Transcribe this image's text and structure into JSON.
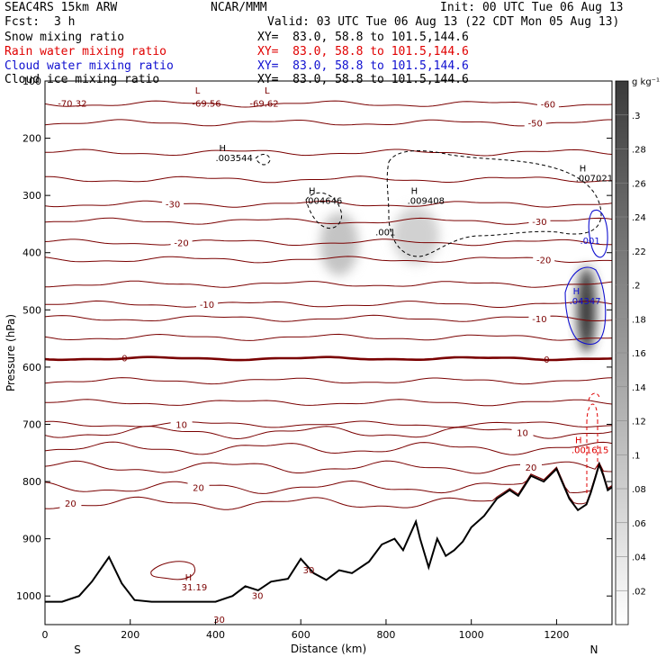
{
  "header": {
    "model": "SEAC4RS 15km ARW",
    "org": "NCAR/MMM",
    "init": "Init: 00 UTC Tue 06 Aug 13",
    "fcst_label": "Fcst:",
    "fcst_value": "3 h",
    "valid": "Valid: 03 UTC Tue 06 Aug 13 (22 CDT Mon 05 Aug 13)",
    "fields": [
      {
        "name": "Snow mixing ratio",
        "xy": "XY=  83.0, 58.8 to 101.5,144.6",
        "color": "#000000"
      },
      {
        "name": "Rain water mixing ratio",
        "xy": "XY=  83.0, 58.8 to 101.5,144.6",
        "color": "#e00000"
      },
      {
        "name": "Cloud water mixing ratio",
        "xy": "XY=  83.0, 58.8 to 101.5,144.6",
        "color": "#1010d0"
      },
      {
        "name": "Cloud ice mixing ratio",
        "xy": "XY=  83.0, 58.8 to 101.5,144.6",
        "color": "#000000"
      }
    ]
  },
  "chart_data": {
    "type": "contour cross-section",
    "xlabel": "Distance (km)",
    "ylabel": "Pressure (hPa)",
    "xlim": [
      0,
      1330
    ],
    "ylim": [
      1050,
      100
    ],
    "x_ticks": [
      0,
      200,
      400,
      600,
      800,
      1000,
      1200
    ],
    "y_ticks": [
      100,
      200,
      300,
      400,
      500,
      600,
      700,
      800,
      900,
      1000
    ],
    "y_tick_labels": [
      "100",
      "200",
      "300",
      "400",
      "500",
      "600",
      "700",
      "800",
      "900",
      "1000"
    ],
    "left_end_label": "S",
    "right_end_label": "N",
    "colorbar": {
      "unit": "g kg⁻¹",
      "ticks": [
        0.02,
        0.04,
        0.06,
        0.08,
        0.1,
        0.12,
        0.14,
        0.16,
        0.18,
        0.2,
        0.22,
        0.24,
        0.26,
        0.28,
        0.3
      ],
      "tick_labels": [
        ".02",
        ".04",
        ".06",
        ".08",
        ".1",
        ".12",
        ".14",
        ".16",
        ".18",
        ".2",
        ".22",
        ".24",
        ".26",
        ".28",
        ".3"
      ],
      "max": 0.32
    },
    "temperature_contours": {
      "color": "#7a0000",
      "zero_line": {
        "value": 0,
        "pressure": 585
      },
      "levels": [
        {
          "p": 140,
          "label": "-60",
          "lx": 1180
        },
        {
          "p": 173,
          "label": "-50",
          "lx": 1150
        },
        {
          "p": 225
        },
        {
          "p": 272
        },
        {
          "p": 315,
          "label": "-30",
          "lx": 300
        },
        {
          "p": 345,
          "label": "-30",
          "lx": 1160
        },
        {
          "p": 382,
          "label": "-20",
          "lx": 320
        },
        {
          "p": 412,
          "label": "-20",
          "lx": 1170
        },
        {
          "p": 455
        },
        {
          "p": 490,
          "label": "-10",
          "lx": 380
        },
        {
          "p": 515,
          "label": "-10",
          "lx": 1160
        },
        {
          "p": 548
        },
        {
          "p": 624
        },
        {
          "p": 662
        },
        {
          "p": 700,
          "label": "10",
          "lx": 320
        },
        {
          "p": 714,
          "label": "10",
          "lx": 1120
        },
        {
          "p": 742
        },
        {
          "p": 775,
          "label": "20",
          "lx": 1140
        },
        {
          "p": 810,
          "label": "20",
          "lx": 360
        },
        {
          "p": 838,
          "label": "20",
          "lx": 60
        }
      ]
    },
    "top_labels": [
      {
        "x": 30,
        "p": 145,
        "text": "-70.32"
      },
      {
        "x": 345,
        "p": 145,
        "text": "-69.56"
      },
      {
        "x": 480,
        "p": 145,
        "text": "-69.62"
      },
      {
        "x": 352,
        "p": 122,
        "text": "L"
      },
      {
        "x": 515,
        "p": 122,
        "text": "L"
      }
    ],
    "hi_markers": [
      {
        "x": 400,
        "p": 240,
        "value": ".003544"
      },
      {
        "x": 610,
        "p": 315,
        "value": ".004646"
      },
      {
        "x": 850,
        "p": 315,
        "value": ".009408"
      },
      {
        "x": 1245,
        "p": 275,
        "value": ".007021"
      },
      {
        "x": 1230,
        "p": 490,
        "value": ".04347"
      },
      {
        "x": 1235,
        "p": 750,
        "value": ".001615"
      },
      {
        "x": 320,
        "p": 990,
        "value": "31.19"
      }
    ],
    "misc_labels": [
      {
        "x": 775,
        "p": 370,
        "text": ".001"
      },
      {
        "x": 1255,
        "p": 385,
        "text": ".001"
      },
      {
        "x": 180,
        "p": 590,
        "text": "0",
        "color": "#7a0000"
      },
      {
        "x": 1170,
        "p": 592,
        "text": "0",
        "color": "#7a0000"
      },
      {
        "x": 605,
        "p": 960,
        "text": "30",
        "color": "#7a0000"
      },
      {
        "x": 485,
        "p": 1005,
        "text": "30",
        "color": "#7a0000"
      },
      {
        "x": 395,
        "p": 1047,
        "text": "30",
        "color": "#7a0000"
      }
    ],
    "snow_shading_blobs": [
      {
        "x": 690,
        "p": 385,
        "rx": 45,
        "rp": 55,
        "value": 0.09
      },
      {
        "x": 870,
        "p": 370,
        "rx": 55,
        "rp": 50,
        "value": 0.07
      },
      {
        "x": 1270,
        "p": 500,
        "rx": 22,
        "rp": 75,
        "value": 0.3
      }
    ],
    "terrain": {
      "x": [
        0,
        40,
        80,
        110,
        150,
        180,
        210,
        250,
        300,
        350,
        400,
        440,
        470,
        500,
        530,
        570,
        600,
        630,
        660,
        690,
        720,
        760,
        790,
        820,
        840,
        870,
        880,
        900,
        920,
        940,
        960,
        980,
        1000,
        1030,
        1060,
        1090,
        1110,
        1140,
        1170,
        1200,
        1230,
        1250,
        1270,
        1280,
        1290,
        1300,
        1310,
        1320,
        1330
      ],
      "p": [
        1010,
        1010,
        1000,
        975,
        932,
        978,
        1007,
        1010,
        1010,
        1010,
        1010,
        1000,
        983,
        990,
        975,
        970,
        935,
        960,
        972,
        955,
        960,
        940,
        910,
        900,
        920,
        870,
        900,
        950,
        900,
        930,
        920,
        905,
        880,
        860,
        830,
        815,
        825,
        790,
        800,
        778,
        830,
        850,
        840,
        820,
        795,
        770,
        790,
        815,
        810
      ]
    }
  }
}
